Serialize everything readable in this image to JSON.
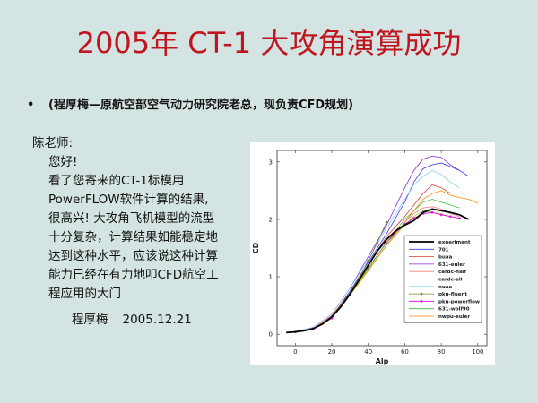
{
  "slide": {
    "title": "2005年 CT-1 大攻角演算成功",
    "bullet_marker": "•",
    "bullet_text": "(程厚梅—原航空部空气动力研究院老总，现负责CFD规划)"
  },
  "letter": {
    "salutation": "陈老师:",
    "greeting": "您好!",
    "body_lines": [
      "看了您寄来的CT-1标模用",
      "PowerFLOW软件计算的结果,",
      "很高兴! 大攻角飞机模型的流型",
      "十分复杂，计算结果如能稳定地",
      "达到这种水平，应该说这种计算",
      "能力已经在有力地叩CFD航空工",
      "程应用的大门"
    ],
    "signature": "程厚梅",
    "date": "2005.12.21"
  },
  "chart_data": {
    "type": "line",
    "title": "",
    "xlabel": "Alp",
    "ylabel": "CD",
    "xlim": [
      -10,
      105
    ],
    "ylim": [
      -0.2,
      3.2
    ],
    "xticks": [
      0,
      20,
      40,
      60,
      80,
      100
    ],
    "yticks": [
      0,
      1,
      2,
      3
    ],
    "legend_position": "lower-right",
    "series": [
      {
        "name": "experiment",
        "color": "#000000",
        "width": 1.8,
        "marker": "",
        "x": [
          -5,
          0,
          5,
          10,
          15,
          20,
          25,
          30,
          35,
          40,
          45,
          50,
          55,
          60,
          65,
          70,
          75,
          80,
          85,
          90,
          95
        ],
        "y": [
          0.03,
          0.04,
          0.06,
          0.1,
          0.18,
          0.3,
          0.48,
          0.7,
          0.95,
          1.2,
          1.45,
          1.65,
          1.8,
          1.9,
          1.98,
          2.12,
          2.18,
          2.15,
          2.12,
          2.08,
          2.0
        ]
      },
      {
        "name": "701",
        "color": "#3a3ae0",
        "width": 0.8,
        "marker": "",
        "x": [
          0,
          10,
          20,
          30,
          40,
          50,
          60,
          65,
          70,
          75,
          80,
          85,
          90,
          95
        ],
        "y": [
          0.05,
          0.1,
          0.3,
          0.75,
          1.25,
          1.75,
          2.3,
          2.65,
          2.88,
          2.95,
          2.98,
          2.92,
          2.85,
          2.75
        ]
      },
      {
        "name": "buaa",
        "color": "#e03a3a",
        "width": 0.8,
        "marker": "",
        "x": [
          0,
          10,
          20,
          30,
          40,
          50,
          60,
          65,
          70,
          75,
          80,
          85
        ],
        "y": [
          0.05,
          0.1,
          0.32,
          0.72,
          1.2,
          1.7,
          2.05,
          2.25,
          2.45,
          2.6,
          2.55,
          2.45
        ]
      },
      {
        "name": "631-euler",
        "color": "#8a2be2",
        "width": 0.8,
        "marker": "",
        "x": [
          0,
          10,
          20,
          30,
          40,
          50,
          60,
          65,
          70,
          75,
          80,
          85,
          90
        ],
        "y": [
          0.05,
          0.12,
          0.35,
          0.8,
          1.35,
          1.9,
          2.55,
          2.85,
          3.05,
          3.1,
          3.08,
          2.95,
          2.85
        ]
      },
      {
        "name": "cardc-half",
        "color": "#f08080",
        "width": 0.8,
        "marker": "",
        "x": [
          0,
          10,
          20,
          30,
          40,
          50,
          60,
          65,
          70,
          75,
          80,
          85,
          90
        ],
        "y": [
          0.04,
          0.1,
          0.3,
          0.7,
          1.15,
          1.6,
          1.95,
          2.1,
          2.2,
          2.22,
          2.18,
          2.1,
          2.05
        ]
      },
      {
        "name": "cardc-all",
        "color": "#9acd32",
        "width": 0.8,
        "marker": "",
        "x": [
          0,
          10,
          20,
          30,
          40,
          50,
          60,
          65,
          70,
          75,
          80,
          85
        ],
        "y": [
          0.04,
          0.1,
          0.28,
          0.68,
          1.1,
          1.55,
          1.9,
          2.05,
          2.15,
          2.12,
          2.1,
          2.05
        ]
      },
      {
        "name": "nuaa",
        "color": "#87cefa",
        "width": 0.8,
        "marker": "",
        "x": [
          0,
          10,
          20,
          30,
          40,
          50,
          60,
          65,
          70,
          75,
          80,
          85,
          90
        ],
        "y": [
          0.05,
          0.12,
          0.35,
          0.8,
          1.3,
          1.85,
          2.35,
          2.6,
          2.75,
          2.85,
          2.78,
          2.65,
          2.55
        ]
      },
      {
        "name": "pku-fluent",
        "color": "#6b8e23",
        "width": 0.8,
        "marker": "dot",
        "x": [
          0,
          10,
          20,
          30,
          35,
          40,
          45,
          50
        ],
        "y": [
          0.04,
          0.1,
          0.3,
          0.72,
          0.98,
          1.28,
          1.6,
          1.95
        ]
      },
      {
        "name": "pku-powerflow",
        "color": "#e020e0",
        "width": 1.0,
        "marker": "dot",
        "x": [
          0,
          10,
          20,
          30,
          40,
          50,
          60,
          65,
          70,
          75,
          80,
          85,
          90
        ],
        "y": [
          0.04,
          0.1,
          0.28,
          0.7,
          1.15,
          1.6,
          1.92,
          2.02,
          2.1,
          2.12,
          2.08,
          2.05,
          2.02
        ]
      },
      {
        "name": "631-wolf90",
        "color": "#40c040",
        "width": 0.8,
        "marker": "",
        "x": [
          0,
          10,
          20,
          30,
          40,
          50,
          60,
          65,
          70,
          75,
          80,
          85,
          90
        ],
        "y": [
          0.05,
          0.1,
          0.3,
          0.7,
          1.15,
          1.6,
          2.0,
          2.15,
          2.3,
          2.35,
          2.3,
          2.25,
          2.2
        ]
      },
      {
        "name": "nwpu-euler",
        "color": "#ff8c00",
        "width": 0.8,
        "marker": "",
        "x": [
          0,
          10,
          20,
          30,
          40,
          50,
          60,
          65,
          70,
          75,
          80,
          85,
          90,
          95,
          100
        ],
        "y": [
          0.05,
          0.1,
          0.3,
          0.7,
          1.12,
          1.55,
          1.95,
          2.15,
          2.35,
          2.45,
          2.5,
          2.42,
          2.38,
          2.35,
          2.28
        ]
      }
    ]
  }
}
